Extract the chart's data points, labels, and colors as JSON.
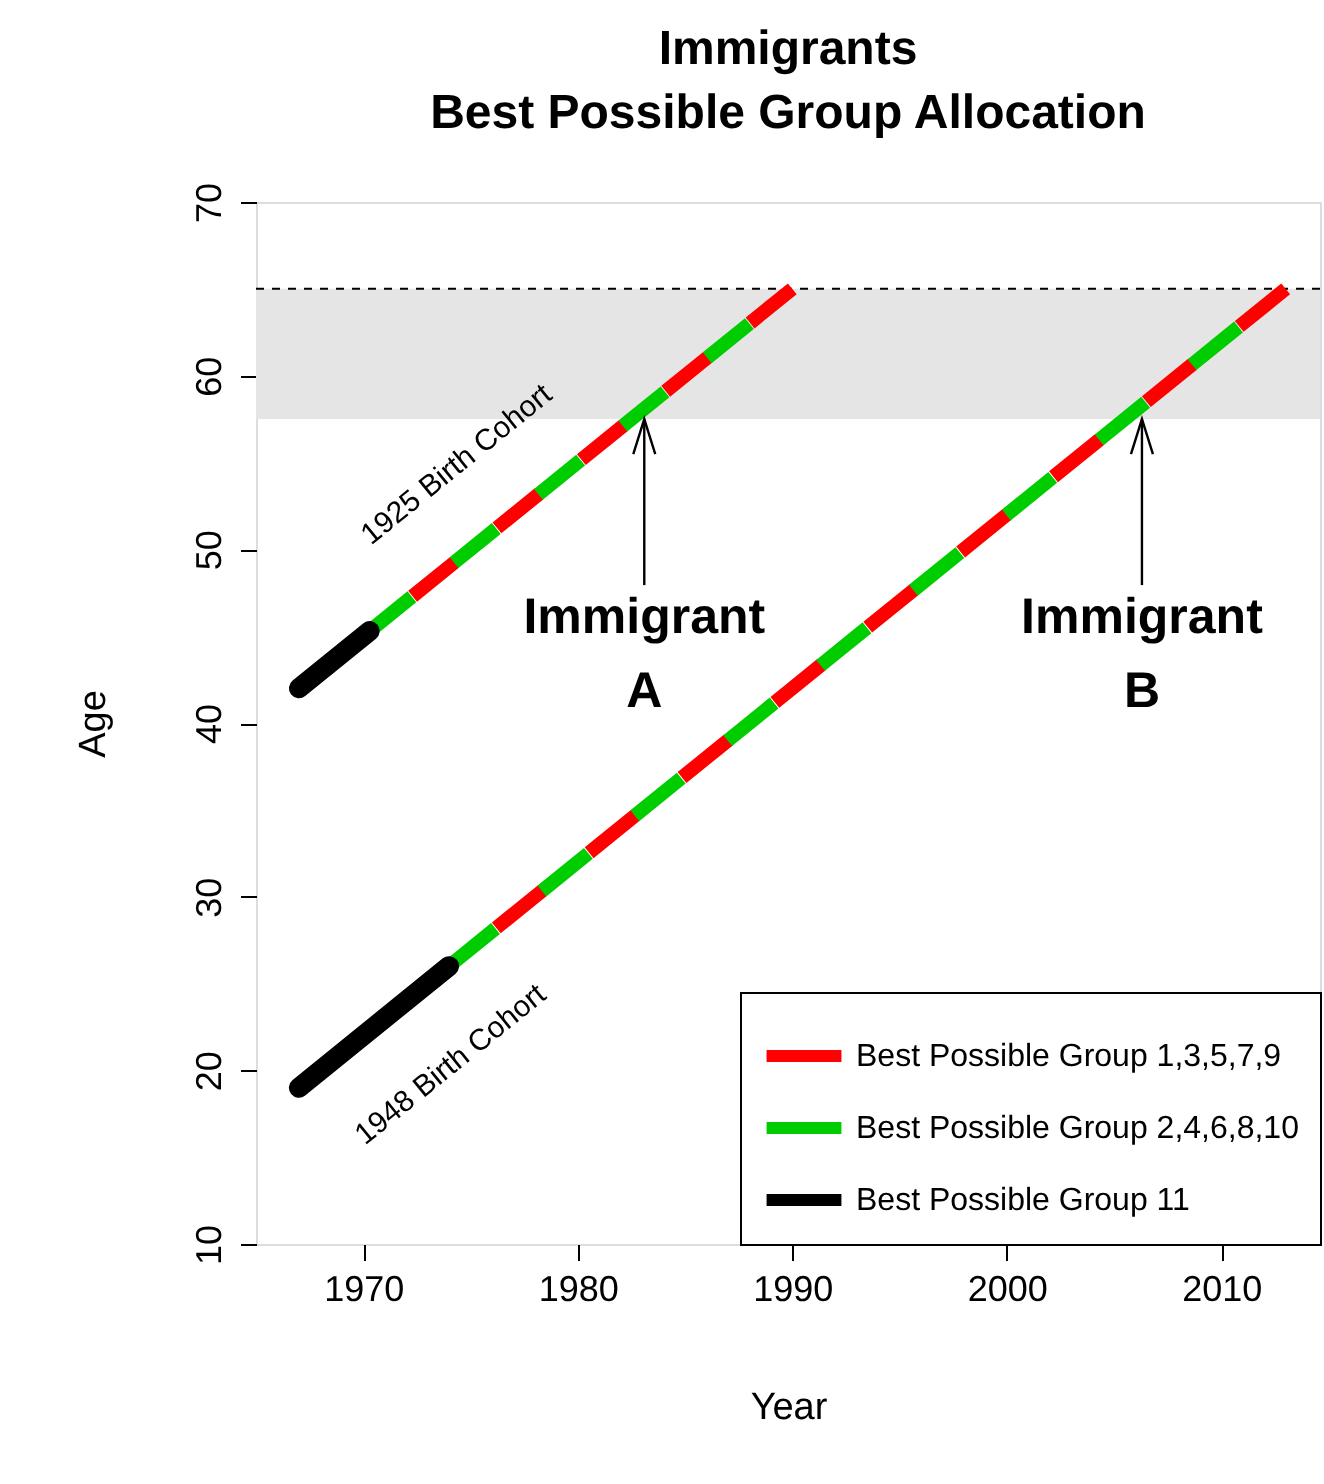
{
  "chart_data": {
    "type": "line",
    "title": "Immigrants\nBest Possible Group Allocation",
    "xlabel": "Year",
    "ylabel": "Age",
    "xlim": [
      1965,
      2014.6
    ],
    "ylim": [
      10,
      70
    ],
    "xticks": [
      1970,
      1980,
      1990,
      2000,
      2010
    ],
    "yticks": [
      10,
      20,
      30,
      40,
      50,
      60,
      70
    ],
    "grid": false,
    "marker": "none",
    "legend": "bottom right",
    "series": [
      {
        "name": "Best Possible Group 1,3,5,7,9",
        "color": "#ff0000",
        "line_style": "dashed",
        "x": [
          1972.3,
          1990
        ],
        "values": [
          47.3,
          65
        ]
      },
      {
        "color": "#ff0000",
        "line_style": "dashed",
        "x": [
          1976.2,
          2013
        ],
        "values": [
          28.2,
          65
        ]
      },
      {
        "name": "Best Possible Group 2,4,6,8,10",
        "color": "#00cd00",
        "line_style": "dashed",
        "x": [
          1970.3,
          1988
        ],
        "values": [
          45.3,
          63
        ]
      },
      {
        "color": "#00cd00",
        "line_style": "dashed",
        "x": [
          1974,
          2010.8
        ],
        "values": [
          26,
          62.8
        ]
      },
      {
        "name": "Best Possible Group 11",
        "color": "#000000",
        "line_style": "solid",
        "x": [
          1967,
          1970.3
        ],
        "values": [
          42,
          45.3
        ]
      },
      {
        "color": "#000000",
        "line_style": "solid",
        "x": [
          1967,
          1974
        ],
        "values": [
          19,
          26
        ]
      }
    ],
    "bands": [
      {
        "axis": "y",
        "from": 57.5,
        "to": 65,
        "color": "#e5e5e5"
      }
    ],
    "ref_lines": [
      {
        "axis": "y",
        "value": 65,
        "color": "#000000",
        "line_style": "dashed"
      }
    ],
    "annotations": [
      "1925 Birth Cohort",
      "1948 Birth Cohort",
      {
        "text": "Immigrant\nA",
        "x": 1983.1,
        "y": 57.5
      },
      {
        "text": "Immigrant\nB",
        "x": 2006.3,
        "y": 57.5
      }
    ]
  }
}
